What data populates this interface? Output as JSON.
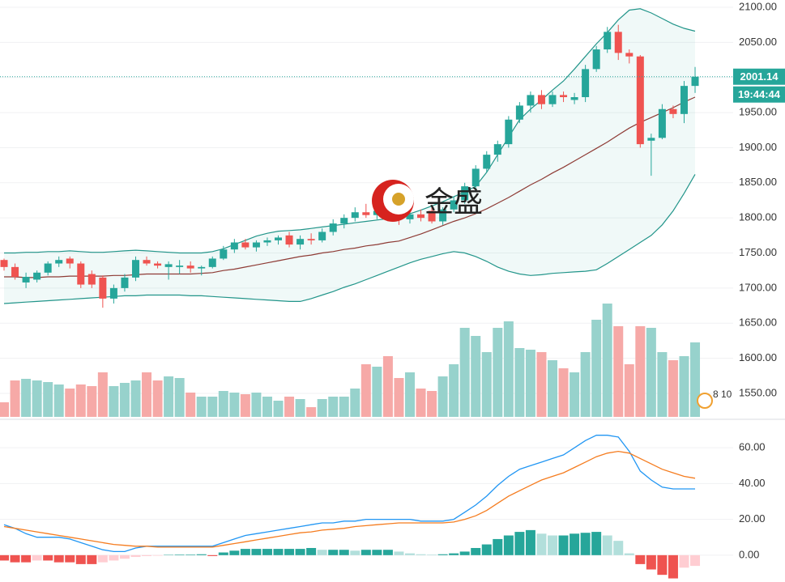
{
  "chart_data": [
    {
      "type": "candlestick",
      "ylim": [
        1516.5,
        2110.4
      ],
      "yticks": [
        {
          "value": 2100,
          "label": "2100.00"
        },
        {
          "value": 2050,
          "label": "2050.00"
        },
        {
          "value": 2000,
          "label": "2000.00"
        },
        {
          "value": 1950,
          "label": "1950.00"
        },
        {
          "value": 1900,
          "label": "1900.00"
        },
        {
          "value": 1850,
          "label": "1850.00"
        },
        {
          "value": 1800,
          "label": "1800.00"
        },
        {
          "value": 1750,
          "label": "1750.00"
        },
        {
          "value": 1700,
          "label": "1700.00"
        },
        {
          "value": 1650,
          "label": "1650.00"
        },
        {
          "value": 1600,
          "label": "1600.00"
        },
        {
          "value": 1550,
          "label": "1550.00"
        }
      ],
      "grid": true,
      "up_color": "#26a69a",
      "down_color": "#ef5350",
      "ohlc": [
        [
          1740,
          1742,
          1725,
          1730
        ],
        [
          1730,
          1735,
          1712,
          1716
        ],
        [
          1708,
          1722,
          1700,
          1716
        ],
        [
          1712,
          1725,
          1708,
          1722
        ],
        [
          1722,
          1738,
          1718,
          1735
        ],
        [
          1735,
          1745,
          1730,
          1740
        ],
        [
          1742,
          1745,
          1728,
          1735
        ],
        [
          1735,
          1738,
          1700,
          1705
        ],
        [
          1720,
          1725,
          1700,
          1705
        ],
        [
          1715,
          1718,
          1672,
          1685
        ],
        [
          1685,
          1705,
          1678,
          1700
        ],
        [
          1700,
          1720,
          1695,
          1715
        ],
        [
          1715,
          1745,
          1710,
          1740
        ],
        [
          1740,
          1745,
          1732,
          1735
        ],
        [
          1735,
          1738,
          1728,
          1732
        ],
        [
          1730,
          1738,
          1712,
          1734
        ],
        [
          1730,
          1740,
          1720,
          1732
        ],
        [
          1732,
          1738,
          1722,
          1728
        ],
        [
          1728,
          1732,
          1718,
          1730
        ],
        [
          1730,
          1745,
          1728,
          1742
        ],
        [
          1742,
          1760,
          1740,
          1755
        ],
        [
          1755,
          1770,
          1750,
          1765
        ],
        [
          1765,
          1770,
          1755,
          1758
        ],
        [
          1758,
          1768,
          1752,
          1765
        ],
        [
          1765,
          1772,
          1760,
          1768
        ],
        [
          1768,
          1775,
          1762,
          1772
        ],
        [
          1775,
          1780,
          1758,
          1762
        ],
        [
          1762,
          1775,
          1755,
          1770
        ],
        [
          1770,
          1778,
          1762,
          1768
        ],
        [
          1768,
          1785,
          1765,
          1780
        ],
        [
          1780,
          1798,
          1775,
          1792
        ],
        [
          1792,
          1805,
          1785,
          1800
        ],
        [
          1800,
          1815,
          1795,
          1808
        ],
        [
          1808,
          1820,
          1800,
          1804
        ],
        [
          1804,
          1815,
          1798,
          1810
        ],
        [
          1810,
          1818,
          1795,
          1800
        ],
        [
          1800,
          1812,
          1790,
          1798
        ],
        [
          1798,
          1810,
          1792,
          1805
        ],
        [
          1805,
          1812,
          1795,
          1800
        ],
        [
          1810,
          1815,
          1792,
          1795
        ],
        [
          1795,
          1815,
          1790,
          1812
        ],
        [
          1812,
          1830,
          1808,
          1825
        ],
        [
          1825,
          1850,
          1820,
          1845
        ],
        [
          1845,
          1875,
          1840,
          1870
        ],
        [
          1870,
          1895,
          1865,
          1890
        ],
        [
          1890,
          1910,
          1880,
          1905
        ],
        [
          1905,
          1945,
          1900,
          1940
        ],
        [
          1940,
          1965,
          1935,
          1960
        ],
        [
          1960,
          1980,
          1950,
          1975
        ],
        [
          1975,
          1982,
          1955,
          1962
        ],
        [
          1962,
          1980,
          1958,
          1975
        ],
        [
          1975,
          1980,
          1965,
          1972
        ],
        [
          1968,
          1978,
          1962,
          1972
        ],
        [
          1972,
          2018,
          1965,
          2012
        ],
        [
          2012,
          2045,
          2008,
          2040
        ],
        [
          2040,
          2072,
          2035,
          2065
        ],
        [
          2065,
          2075,
          2025,
          2035
        ],
        [
          2035,
          2040,
          2020,
          2030
        ],
        [
          2030,
          2032,
          1900,
          1905
        ],
        [
          1910,
          1920,
          1860,
          1914
        ],
        [
          1914,
          1962,
          1912,
          1955
        ],
        [
          1955,
          1960,
          1942,
          1948
        ],
        [
          1948,
          1995,
          1935,
          1988
        ],
        [
          1988,
          2015,
          1978,
          2001.14
        ]
      ],
      "bands": {
        "upper_color": "#22958a",
        "middle_color": "#8e3b35",
        "fill": "rgba(38,166,154,0.07)",
        "upper": [
          1750,
          1750,
          1751,
          1751,
          1752,
          1752,
          1753,
          1752,
          1751,
          1751,
          1752,
          1753,
          1754,
          1753,
          1752,
          1751,
          1750,
          1750,
          1750,
          1752,
          1756,
          1762,
          1768,
          1774,
          1778,
          1781,
          1782,
          1783,
          1785,
          1787,
          1789,
          1791,
          1793,
          1795,
          1797,
          1799,
          1802,
          1806,
          1811,
          1817,
          1823,
          1830,
          1837,
          1845,
          1865,
          1890,
          1915,
          1940,
          1955,
          1968,
          1982,
          1995,
          2012,
          2030,
          2048,
          2064,
          2082,
          2096,
          2098,
          2092,
          2084,
          2076,
          2070,
          2066
        ],
        "middle": [
          1716,
          1716,
          1715,
          1715,
          1716,
          1716,
          1717,
          1717,
          1717,
          1717,
          1718,
          1718,
          1719,
          1720,
          1720,
          1720,
          1720,
          1720,
          1721,
          1722,
          1725,
          1727,
          1730,
          1733,
          1736,
          1739,
          1742,
          1745,
          1747,
          1750,
          1752,
          1755,
          1757,
          1760,
          1762,
          1765,
          1767,
          1772,
          1777,
          1783,
          1789,
          1795,
          1800,
          1806,
          1813,
          1821,
          1829,
          1838,
          1847,
          1855,
          1864,
          1872,
          1881,
          1890,
          1899,
          1908,
          1918,
          1928,
          1936,
          1943,
          1950,
          1957,
          1965,
          1972
        ],
        "lower": [
          1678,
          1679,
          1680,
          1681,
          1682,
          1683,
          1684,
          1685,
          1686,
          1687,
          1688,
          1689,
          1689,
          1690,
          1690,
          1690,
          1690,
          1689,
          1689,
          1688,
          1687,
          1686,
          1685,
          1684,
          1683,
          1682,
          1681,
          1681,
          1685,
          1690,
          1695,
          1701,
          1706,
          1712,
          1718,
          1724,
          1730,
          1736,
          1741,
          1745,
          1749,
          1752,
          1750,
          1745,
          1738,
          1730,
          1724,
          1720,
          1718,
          1719,
          1721,
          1722,
          1723,
          1724,
          1726,
          1735,
          1745,
          1755,
          1765,
          1775,
          1790,
          1810,
          1835,
          1862
        ]
      },
      "volume": {
        "ylim": [
          0,
          150
        ],
        "up_color": "#97d2cc",
        "down_color": "#f6a9a7",
        "values": [
          18,
          45,
          47,
          45,
          43,
          40,
          35,
          40,
          38,
          55,
          38,
          42,
          45,
          55,
          45,
          50,
          48,
          30,
          25,
          25,
          32,
          30,
          28,
          30,
          25,
          20,
          25,
          22,
          12,
          22,
          25,
          25,
          35,
          65,
          62,
          75,
          48,
          55,
          35,
          32,
          50,
          65,
          110,
          100,
          80,
          110,
          118,
          85,
          83,
          80,
          70,
          60,
          55,
          80,
          120,
          140,
          112,
          65,
          112,
          110,
          80,
          70,
          75,
          92
        ]
      },
      "last_price": {
        "value": 2001.14,
        "label": "2001.14"
      },
      "countdown": "19:44:44",
      "event_label": "8 10"
    },
    {
      "type": "macd",
      "ylim": [
        -15,
        75
      ],
      "yticks": [
        {
          "value": 60,
          "label": "60.00"
        },
        {
          "value": 40,
          "label": "40.00"
        },
        {
          "value": 20,
          "label": "20.00"
        },
        {
          "value": 0,
          "label": "0.00"
        }
      ],
      "grid": true,
      "macd_color": "#2196f3",
      "signal_color": "#f57c1f",
      "hist_colors": {
        "up_rising": "#26a69a",
        "up_falling": "#b2dfdb",
        "down_falling": "#ef5350",
        "down_rising": "#ffcdd2"
      },
      "macd": [
        17,
        15,
        12,
        10,
        10,
        10,
        9,
        7,
        5,
        3,
        2,
        2,
        4,
        5,
        5,
        5,
        5,
        5,
        5,
        5,
        7,
        9,
        11,
        12,
        13,
        14,
        15,
        16,
        17,
        18,
        18,
        19,
        19,
        20,
        20,
        20,
        20,
        20,
        19,
        19,
        19,
        20,
        24,
        28,
        33,
        39,
        44,
        48,
        50,
        52,
        54,
        56,
        60,
        64,
        67,
        67,
        66,
        58,
        47,
        42,
        38,
        37,
        37,
        37
      ],
      "signal": [
        16,
        15,
        14,
        13,
        12,
        11,
        10,
        9,
        8,
        7,
        6,
        5.5,
        5,
        5,
        4.5,
        4.5,
        4.5,
        4.5,
        4.5,
        4.5,
        5.5,
        6.5,
        7.5,
        8.5,
        9.5,
        10.5,
        11.5,
        12.5,
        13,
        14,
        14.5,
        15,
        16,
        16.5,
        17,
        17.5,
        18,
        18,
        18,
        18,
        18,
        18.5,
        20,
        22,
        25,
        29,
        33,
        36,
        39,
        42,
        44,
        46,
        49,
        52,
        55,
        57,
        58,
        57,
        54,
        51,
        48,
        46,
        44,
        43
      ],
      "histogram": [
        -3,
        -4,
        -4,
        -3,
        -3,
        -4,
        -4,
        -5,
        -5,
        -4,
        -3,
        -2,
        -1,
        -0.5,
        -0.3,
        0.2,
        0.3,
        0.3,
        0.5,
        -0.5,
        1.5,
        2.5,
        3.5,
        3.5,
        3.5,
        3.5,
        3.5,
        3.5,
        4,
        3,
        3,
        3,
        2.5,
        3,
        3,
        3,
        2,
        1,
        0.5,
        0.3,
        0.5,
        1,
        2,
        4,
        6,
        9,
        11,
        13,
        14,
        12,
        11,
        11,
        12,
        12.5,
        13,
        11,
        8,
        1,
        -5,
        -8,
        -11,
        -13,
        -7,
        -6
      ]
    }
  ],
  "logo": {
    "text": "金盛"
  }
}
